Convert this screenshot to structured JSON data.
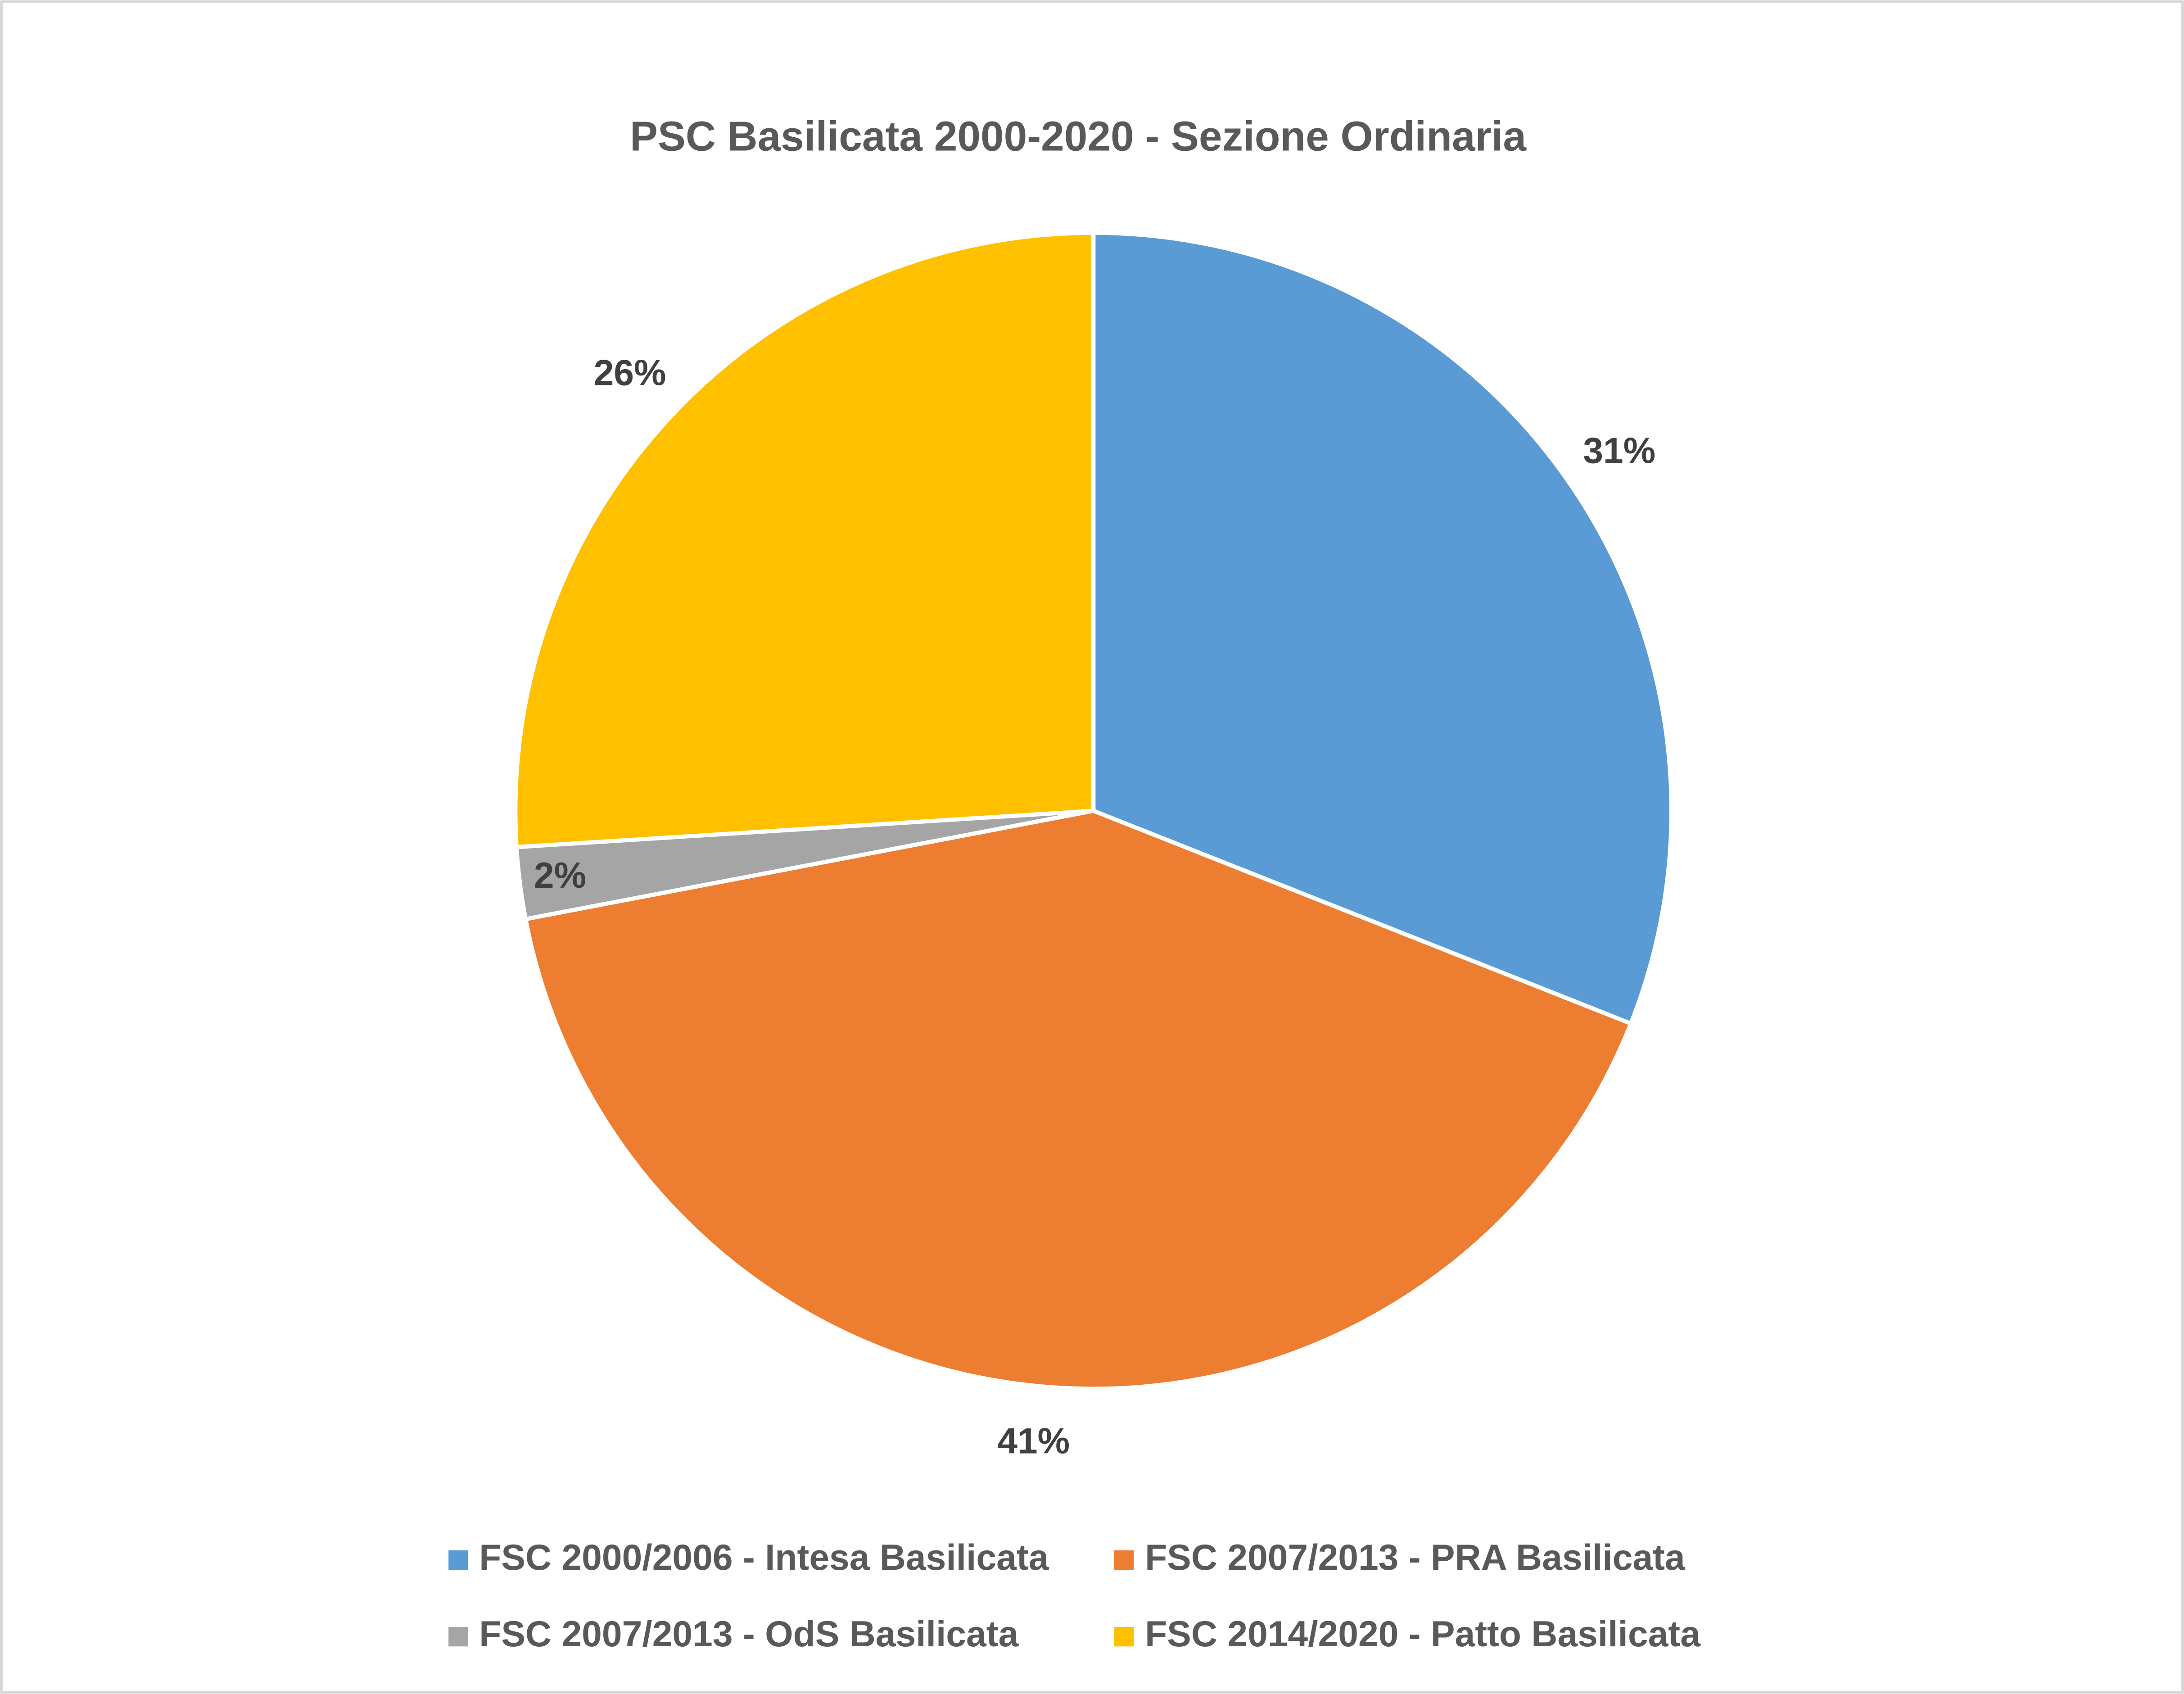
{
  "chart_data": {
    "type": "pie",
    "title": "PSC Basilicata 2000-2020 - Sezione Ordinaria",
    "categories": [
      "FSC 2000/2006 - Intesa Basilicata",
      "FSC 2007/2013 - PRA Basilicata",
      "FSC 2007/2013 - OdS Basilicata",
      "FSC 2014/2020 - Patto Basilicata"
    ],
    "values": [
      31,
      41,
      2,
      26
    ],
    "value_labels": [
      "31%",
      "41%",
      "2%",
      "26%"
    ],
    "colors": [
      "#5b9bd5",
      "#ed7d31",
      "#a5a5a5",
      "#ffc000"
    ],
    "legend": "bottom"
  }
}
